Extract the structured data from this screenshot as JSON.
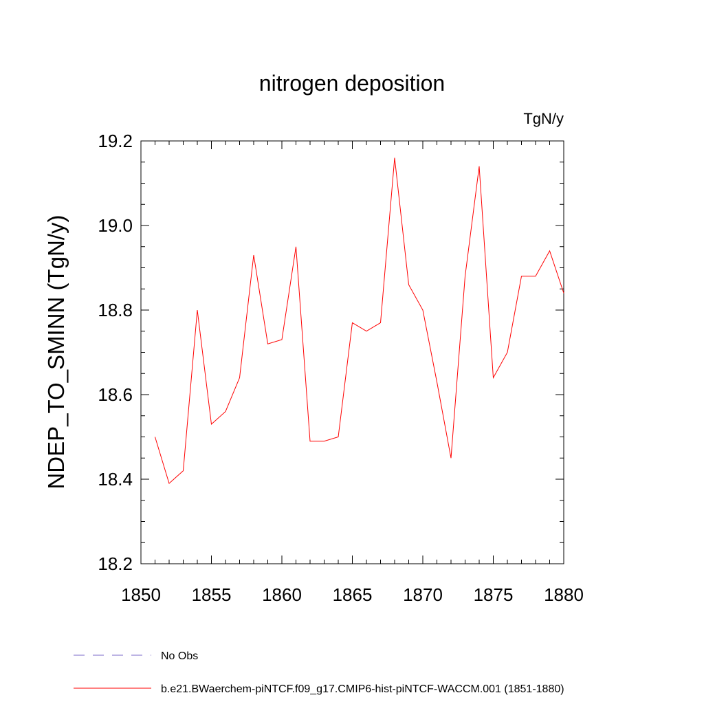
{
  "chart_data": {
    "type": "line",
    "title": "nitrogen deposition",
    "units_label": "TgN/y",
    "ylabel": "NDEP_TO_SMINN  (TgN/y)",
    "xlabel": "",
    "xlim": [
      1850,
      1880
    ],
    "ylim": [
      18.2,
      19.2
    ],
    "x_ticks": [
      1850,
      1855,
      1860,
      1865,
      1870,
      1875,
      1880
    ],
    "x_tick_labels": [
      "1850",
      "1855",
      "1860",
      "1865",
      "1870",
      "1875",
      "1880"
    ],
    "y_ticks": [
      18.2,
      18.4,
      18.6,
      18.8,
      19.0,
      19.2
    ],
    "y_tick_labels": [
      "18.2",
      "18.4",
      "18.6",
      "18.8",
      "19.0",
      "19.2"
    ],
    "grid": false,
    "legend_placement": "bottom-left",
    "series": [
      {
        "name": "b.e21.BWaerchem-piNTCF.f09_g17.CMIP6-hist-piNTCF-WACCM.001 (1851-1880)",
        "color": "#ff0000",
        "dash": "solid",
        "x": [
          1851,
          1852,
          1853,
          1854,
          1855,
          1856,
          1857,
          1858,
          1859,
          1860,
          1861,
          1862,
          1863,
          1864,
          1865,
          1866,
          1867,
          1868,
          1869,
          1870,
          1871,
          1872,
          1873,
          1874,
          1875,
          1876,
          1877,
          1878,
          1879,
          1880
        ],
        "values": [
          18.5,
          18.39,
          18.42,
          18.8,
          18.53,
          18.56,
          18.64,
          18.93,
          18.72,
          18.73,
          18.95,
          18.49,
          18.49,
          18.5,
          18.77,
          18.75,
          18.77,
          19.16,
          18.86,
          18.8,
          18.63,
          18.45,
          18.88,
          19.14,
          18.64,
          18.7,
          18.88,
          18.88,
          18.94,
          18.84
        ]
      }
    ],
    "legend": [
      {
        "label": "No Obs",
        "color": "#7b68c8",
        "dash": "dashed"
      },
      {
        "label": "b.e21.BWaerchem-piNTCF.f09_g17.CMIP6-hist-piNTCF-WACCM.001 (1851-1880)",
        "color": "#ff0000",
        "dash": "solid"
      }
    ]
  }
}
